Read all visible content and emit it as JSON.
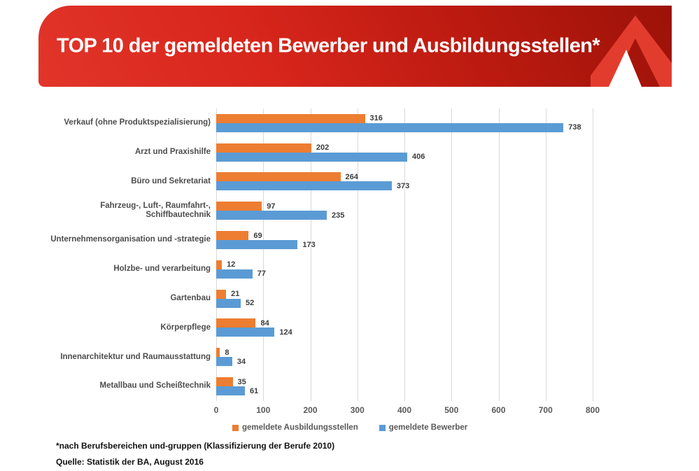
{
  "header": {
    "title": "TOP 10 der gemeldeten Bewerber und Ausbildungsstellen*"
  },
  "colors": {
    "banner_red_bright": "#d8261c",
    "banner_red_dark": "#9c1208",
    "logo_red": "#e23c2e",
    "series_orange": "#ED7D31",
    "series_blue": "#5B9BD5",
    "gridline_gray": "#D9D9D9",
    "axis_text_gray": "#595959"
  },
  "chart_data": {
    "type": "bar",
    "orientation": "horizontal",
    "title": "TOP 10 der gemeldeten Bewerber und Ausbildungsstellen*",
    "categories": [
      "Verkauf (ohne Produktspezialisierung)",
      "Arzt und Praxishilfe",
      "Büro und Sekretariat",
      "Fahrzeug-, Luft-, Raumfahrt-, Schiffbautechnik",
      "Unternehmensorganisation und -strategie",
      "Holzbe- und verarbeitung",
      "Gartenbau",
      "Körperpflege",
      "Innenarchitektur und Raumausstattung",
      "Metallbau und Scheißtechnik"
    ],
    "series": [
      {
        "name": "gemeldete Ausbildungsstellen",
        "color": "#ED7D31",
        "values": [
          316,
          202,
          264,
          97,
          69,
          12,
          21,
          84,
          8,
          35
        ]
      },
      {
        "name": "gemeldete Bewerber",
        "color": "#5B9BD5",
        "values": [
          738,
          406,
          373,
          235,
          173,
          77,
          52,
          124,
          34,
          61
        ]
      }
    ],
    "xlim": [
      0,
      800
    ],
    "x_ticks": [
      0,
      100,
      200,
      300,
      400,
      500,
      600,
      700,
      800
    ],
    "grid": "vertical-gridlines",
    "legend_position": "bottom",
    "value_labels": "outside-end"
  },
  "footer": {
    "note": "*nach Berufsbereichen und-gruppen (Klassifizierung der Berufe 2010)",
    "source": "Quelle: Statistik der BA, August 2016"
  }
}
